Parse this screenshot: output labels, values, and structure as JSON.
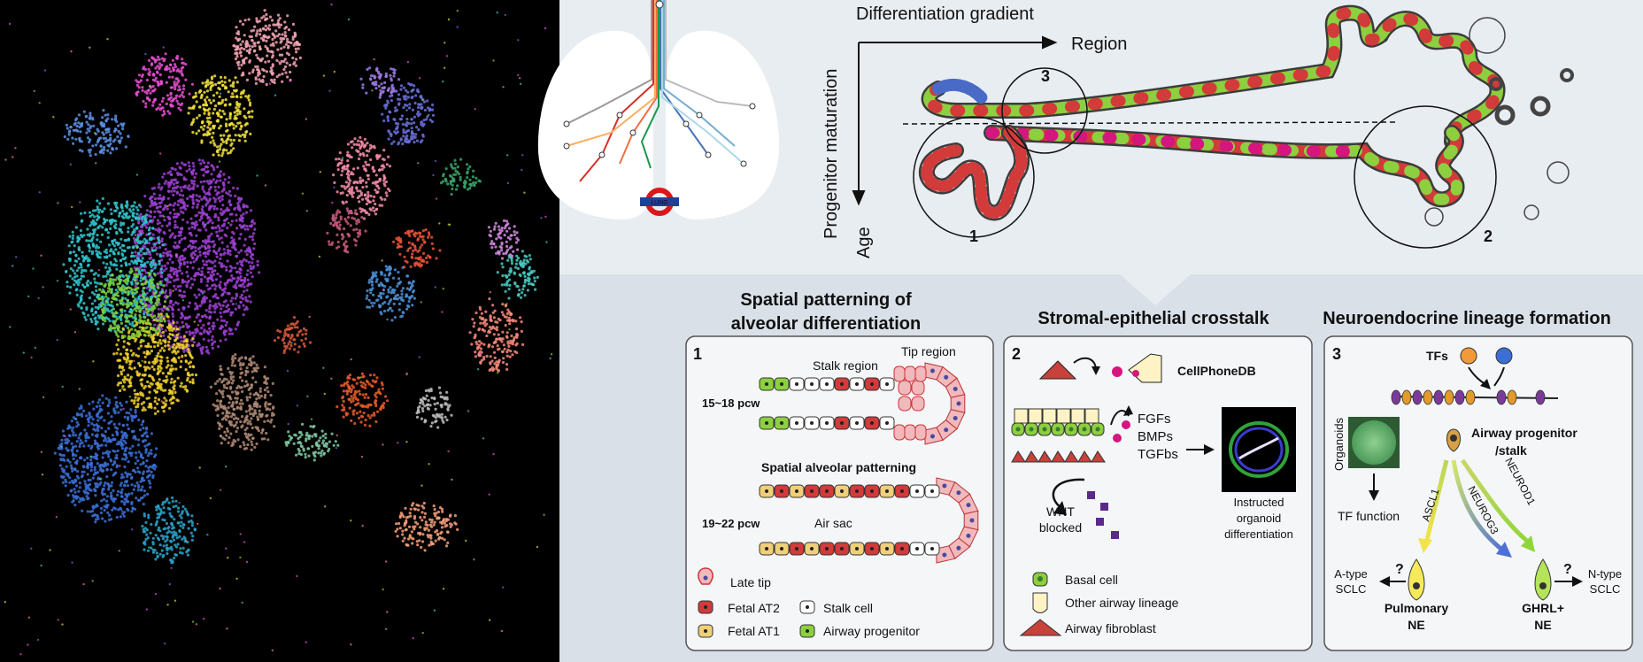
{
  "top": {
    "differentiation_gradient": "Differentiation gradient",
    "region": "Region",
    "progenitor_maturation": "Progenitor maturation",
    "age": "Age",
    "circle_1": "1",
    "circle_2": "2",
    "circle_3": "3",
    "lung_roundel": "LUNG"
  },
  "panels": {
    "p1": {
      "heading_line1": "Spatial patterning of",
      "heading_line2": "alveolar differentiation",
      "number": "1",
      "stalk_region": "Stalk region",
      "tip_region": "Tip region",
      "pcw_early": "15~18 pcw",
      "spatial_alveolar_patterning": "Spatial alveolar patterning",
      "pcw_late": "19~22 pcw",
      "air_sac": "Air sac",
      "legend": {
        "late_tip": "Late tip",
        "fetal_at2": "Fetal AT2",
        "stalk_cell": "Stalk cell",
        "fetal_at1": "Fetal AT1",
        "airway_progenitor": "Airway progenitor"
      }
    },
    "p2": {
      "heading": "Stromal-epithelial crosstalk",
      "number": "2",
      "cellphonedb": "CellPhoneDB",
      "fgfs": "FGFs",
      "bmps": "BMPs",
      "tgfbs": "TGFbs",
      "wnt": "WNT",
      "blocked": "blocked",
      "instructed_line1": "Instructed",
      "instructed_line2": "organoid",
      "instructed_line3": "differentiation",
      "legend": {
        "basal_cell": "Basal cell",
        "other_airway_lineage": "Other airway lineage",
        "airway_fibroblast": "Airway fibroblast"
      }
    },
    "p3": {
      "heading": "Neuroendocrine lineage formation",
      "number": "3",
      "tfs": "TFs",
      "organoids": "Organoids",
      "tf_function": "TF function",
      "airway_progenitor_line1": "Airway progenitor",
      "airway_progenitor_line2": "/stalk",
      "ascl1": "ASCL1",
      "neurog3": "NEUROG3",
      "neurod1": "NEUROD1",
      "q1": "?",
      "q2": "?",
      "a_type_line1": "A-type",
      "a_type_line2": "SCLC",
      "n_type_line1": "N-type",
      "n_type_line2": "SCLC",
      "pulmonary_line1": "Pulmonary",
      "pulmonary_line2": "NE",
      "ghrl_line1": "GHRL+",
      "ghrl_line2": "NE"
    }
  },
  "colors": {
    "tip_red": "#d33a3a",
    "stalk_white": "#ffffff",
    "progenitor_green": "#8ccf3f",
    "at1_yellow": "#f0cf7a",
    "fibroblast_red": "#c8413b",
    "magenta": "#d4167e",
    "panel_bg": "#e7ecf1",
    "card_bg": "#f5f7f9"
  }
}
